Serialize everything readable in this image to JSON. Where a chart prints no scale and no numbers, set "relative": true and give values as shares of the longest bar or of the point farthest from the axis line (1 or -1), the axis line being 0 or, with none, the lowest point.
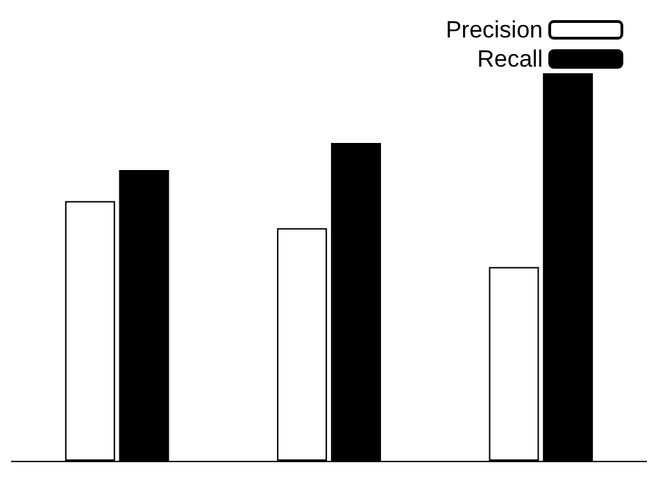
{
  "chart_data": {
    "type": "bar",
    "relative": true,
    "categories": [
      null,
      null,
      null
    ],
    "series": [
      {
        "name": "Precision",
        "color": "#ffffff",
        "values": [
          0.67,
          0.6,
          0.5
        ]
      },
      {
        "name": "Recall",
        "color": "#000000",
        "values": [
          0.75,
          0.82,
          1.0
        ]
      }
    ],
    "legend": "top right"
  }
}
